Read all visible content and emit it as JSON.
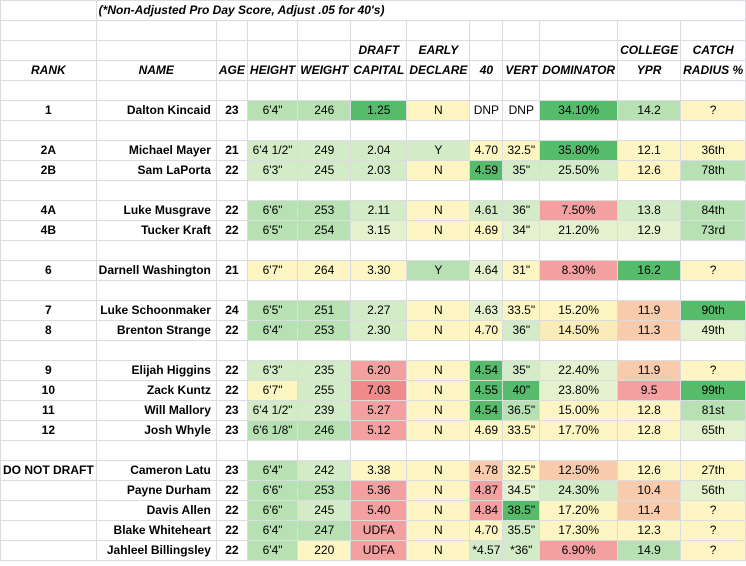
{
  "note": "(*Non-Adjusted Pro Day Score, Adjust .05 for 40's)",
  "header_top": {
    "draft": "DRAFT",
    "early": "EARLY",
    "college": "COLLEGE",
    "catch": "CATCH"
  },
  "header": {
    "rank": "RANK",
    "name": "NAME",
    "age": "AGE",
    "height": "HEIGHT",
    "weight": "WEIGHT",
    "draft": "CAPITAL",
    "early": "DECLARE",
    "forty": "40",
    "vert": "VERT",
    "dominator": "DOMINATOR",
    "college": "YPR",
    "catch": "RADIUS %"
  },
  "rows": [
    {
      "rank": "1",
      "name": "Dalton Kincaid",
      "age": "23",
      "height": "6'4\"",
      "weight": "246",
      "draft": "1.25",
      "early": "N",
      "forty": "DNP",
      "vert": "DNP",
      "dominator": "34.10%",
      "ypr": "14.2",
      "catch": "?",
      "colors": {
        "height": "#b7e1b3",
        "weight": "#b7e1b3",
        "draft": "#57bb6c",
        "early": "#fdf6c3",
        "forty": "",
        "vert": "",
        "dominator": "#57bb6c",
        "ypr": "#b7e1b3",
        "catch": "#fdf6c3"
      }
    },
    {
      "rank": "2A",
      "name": "Michael Mayer",
      "age": "21",
      "height": "6'4 1/2\"",
      "weight": "249",
      "draft": "2.04",
      "early": "Y",
      "forty": "4.70",
      "vert": "32.5\"",
      "dominator": "35.80%",
      "ypr": "12.1",
      "catch": "36th",
      "colors": {
        "height": "#d3ebc6",
        "weight": "#d3ebc6",
        "draft": "#d3ebc6",
        "early": "#d3ebc6",
        "forty": "#fdf6c3",
        "vert": "#fdf6c3",
        "dominator": "#57bb6c",
        "ypr": "#fdf6c3",
        "catch": "#fdf6c3"
      }
    },
    {
      "rank": "2B",
      "name": "Sam LaPorta",
      "age": "22",
      "height": "6'3\"",
      "weight": "245",
      "draft": "2.03",
      "early": "N",
      "forty": "4.59",
      "vert": "35\"",
      "dominator": "25.50%",
      "ypr": "12.6",
      "catch": "78th",
      "colors": {
        "height": "#d3ebc6",
        "weight": "#d3ebc6",
        "draft": "#d3ebc6",
        "early": "#fdf6c3",
        "forty": "#57bb6c",
        "vert": "#d3ebc6",
        "dominator": "#d3ebc6",
        "ypr": "#fdf6c3",
        "catch": "#b7e1b3"
      }
    },
    {
      "rank": "4A",
      "name": "Luke Musgrave",
      "age": "22",
      "height": "6'6\"",
      "weight": "253",
      "draft": "2.11",
      "early": "N",
      "forty": "4.61",
      "vert": "36\"",
      "dominator": "7.50%",
      "ypr": "13.8",
      "catch": "84th",
      "colors": {
        "height": "#b7e1b3",
        "weight": "#b7e1b3",
        "draft": "#d3ebc6",
        "early": "#fdf6c3",
        "forty": "#d3ebc6",
        "vert": "#d3ebc6",
        "dominator": "#f4a0a0",
        "ypr": "#d3ebc6",
        "catch": "#b7e1b3"
      }
    },
    {
      "rank": "4B",
      "name": "Tucker Kraft",
      "age": "22",
      "height": "6'5\"",
      "weight": "254",
      "draft": "3.15",
      "early": "N",
      "forty": "4.69",
      "vert": "34\"",
      "dominator": "21.20%",
      "ypr": "12.9",
      "catch": "73rd",
      "colors": {
        "height": "#b7e1b3",
        "weight": "#b7e1b3",
        "draft": "#e4f1cf",
        "early": "#fdf6c3",
        "forty": "#fdf6c3",
        "vert": "#e4f1cf",
        "dominator": "#e4f1cf",
        "ypr": "#e4f1cf",
        "catch": "#b7e1b3"
      }
    },
    {
      "rank": "6",
      "name": "Darnell Washington",
      "age": "21",
      "height": "6'7\"",
      "weight": "264",
      "draft": "3.30",
      "early": "Y",
      "forty": "4.64",
      "vert": "31\"",
      "dominator": "8.30%",
      "ypr": "16.2",
      "catch": "?",
      "colors": {
        "height": "#fdf6c3",
        "weight": "#fdf6c3",
        "draft": "#fdf6c3",
        "early": "#b7e1b3",
        "forty": "#e4f1cf",
        "vert": "#fdf6c3",
        "dominator": "#f4a0a0",
        "ypr": "#57bb6c",
        "catch": "#fdf6c3"
      }
    },
    {
      "rank": "7",
      "name": "Luke Schoonmaker",
      "age": "24",
      "height": "6'5\"",
      "weight": "251",
      "draft": "2.27",
      "early": "N",
      "forty": "4.63",
      "vert": "33.5\"",
      "dominator": "15.20%",
      "ypr": "11.9",
      "catch": "90th",
      "colors": {
        "height": "#b7e1b3",
        "weight": "#b7e1b3",
        "draft": "#d3ebc6",
        "early": "#fdf6c3",
        "forty": "#e4f1cf",
        "vert": "#fdf6c3",
        "dominator": "#fdf6c3",
        "ypr": "#f8cbad",
        "catch": "#57bb6c"
      }
    },
    {
      "rank": "8",
      "name": "Brenton Strange",
      "age": "22",
      "height": "6'4\"",
      "weight": "253",
      "draft": "2.30",
      "early": "N",
      "forty": "4.70",
      "vert": "36\"",
      "dominator": "14.50%",
      "ypr": "11.3",
      "catch": "49th",
      "colors": {
        "height": "#b7e1b3",
        "weight": "#b7e1b3",
        "draft": "#d3ebc6",
        "early": "#fdf6c3",
        "forty": "#fdf6c3",
        "vert": "#d3ebc6",
        "dominator": "#f9ecb9",
        "ypr": "#f8cbad",
        "catch": "#e4f1cf"
      }
    },
    {
      "rank": "9",
      "name": "Elijah Higgins",
      "age": "22",
      "height": "6'3\"",
      "weight": "235",
      "draft": "6.20",
      "early": "N",
      "forty": "4.54",
      "vert": "35\"",
      "dominator": "22.40%",
      "ypr": "11.9",
      "catch": "?",
      "colors": {
        "height": "#d3ebc6",
        "weight": "#d3ebc6",
        "draft": "#f4a0a0",
        "early": "#fdf6c3",
        "forty": "#57bb6c",
        "vert": "#d3ebc6",
        "dominator": "#e4f1cf",
        "ypr": "#f8cbad",
        "catch": "#fdf6c3"
      }
    },
    {
      "rank": "10",
      "name": "Zack Kuntz",
      "age": "22",
      "height": "6'7\"",
      "weight": "255",
      "draft": "7.03",
      "early": "N",
      "forty": "4.55",
      "vert": "40\"",
      "dominator": "23.80%",
      "ypr": "9.5",
      "catch": "99th",
      "colors": {
        "height": "#fdf6c3",
        "weight": "#d3ebc6",
        "draft": "#ef8b8b",
        "early": "#fdf6c3",
        "forty": "#57bb6c",
        "vert": "#57bb6c",
        "dominator": "#e4f1cf",
        "ypr": "#f4a0a0",
        "catch": "#57bb6c"
      }
    },
    {
      "rank": "11",
      "name": "Will Mallory",
      "age": "23",
      "height": "6'4 1/2\"",
      "weight": "239",
      "draft": "5.27",
      "early": "N",
      "forty": "4.54",
      "vert": "36.5\"",
      "dominator": "15.00%",
      "ypr": "12.8",
      "catch": "81st",
      "colors": {
        "height": "#d3ebc6",
        "weight": "#d3ebc6",
        "draft": "#f4a0a0",
        "early": "#fdf6c3",
        "forty": "#57bb6c",
        "vert": "#b7e1b3",
        "dominator": "#fdf6c3",
        "ypr": "#fdf6c3",
        "catch": "#b7e1b3"
      }
    },
    {
      "rank": "12",
      "name": "Josh Whyle",
      "age": "23",
      "height": "6'6 1/8\"",
      "weight": "246",
      "draft": "5.12",
      "early": "N",
      "forty": "4.69",
      "vert": "33.5\"",
      "dominator": "17.70%",
      "ypr": "12.8",
      "catch": "65th",
      "colors": {
        "height": "#b7e1b3",
        "weight": "#b7e1b3",
        "draft": "#f4a0a0",
        "early": "#fdf6c3",
        "forty": "#fdf6c3",
        "vert": "#fdf6c3",
        "dominator": "#fdf6c3",
        "ypr": "#fdf6c3",
        "catch": "#e4f1cf"
      }
    },
    {
      "rank": "DO NOT DRAFT",
      "name": "Cameron Latu",
      "age": "23",
      "height": "6'4\"",
      "weight": "242",
      "draft": "3.38",
      "early": "N",
      "forty": "4.78",
      "vert": "32.5\"",
      "dominator": "12.50%",
      "ypr": "12.6",
      "catch": "27th",
      "colors": {
        "height": "#b7e1b3",
        "weight": "#d3ebc6",
        "draft": "#fdf6c3",
        "early": "#fdf6c3",
        "forty": "#f8cbad",
        "vert": "#fdf6c3",
        "dominator": "#f8cbad",
        "ypr": "#fdf6c3",
        "catch": "#fdf6c3"
      }
    },
    {
      "rank": "",
      "name": "Payne Durham",
      "age": "22",
      "height": "6'6\"",
      "weight": "253",
      "draft": "5.36",
      "early": "N",
      "forty": "4.87",
      "vert": "34.5\"",
      "dominator": "24.30%",
      "ypr": "10.4",
      "catch": "56th",
      "colors": {
        "height": "#b7e1b3",
        "weight": "#b7e1b3",
        "draft": "#f4a0a0",
        "early": "#fdf6c3",
        "forty": "#f4a0a0",
        "vert": "#e4f1cf",
        "dominator": "#d3ebc6",
        "ypr": "#f8cbad",
        "catch": "#e4f1cf"
      }
    },
    {
      "rank": "",
      "name": "Davis Allen",
      "age": "22",
      "height": "6'6\"",
      "weight": "245",
      "draft": "5.40",
      "early": "N",
      "forty": "4.84",
      "vert": "38.5\"",
      "dominator": "17.20%",
      "ypr": "11.4",
      "catch": "?",
      "colors": {
        "height": "#b7e1b3",
        "weight": "#d3ebc6",
        "draft": "#f4a0a0",
        "early": "#fdf6c3",
        "forty": "#f4a0a0",
        "vert": "#57bb6c",
        "dominator": "#fdf6c3",
        "ypr": "#f8cbad",
        "catch": "#fdf6c3"
      }
    },
    {
      "rank": "",
      "name": "Blake Whiteheart",
      "age": "22",
      "height": "6'4\"",
      "weight": "247",
      "draft": "UDFA",
      "early": "N",
      "forty": "4.70",
      "vert": "35.5\"",
      "dominator": "17.30%",
      "ypr": "12.3",
      "catch": "?",
      "colors": {
        "height": "#b7e1b3",
        "weight": "#b7e1b3",
        "draft": "#f4a0a0",
        "early": "#fdf6c3",
        "forty": "#fdf6c3",
        "vert": "#d3ebc6",
        "dominator": "#fdf6c3",
        "ypr": "#fdf6c3",
        "catch": "#fdf6c3"
      }
    },
    {
      "rank": "",
      "name": "Jahleel Billingsley",
      "age": "22",
      "height": "6'4\"",
      "weight": "220",
      "draft": "UDFA",
      "early": "N",
      "forty": "*4.57",
      "vert": "*36\"",
      "dominator": "6.90%",
      "ypr": "14.9",
      "catch": "?",
      "colors": {
        "height": "#b7e1b3",
        "weight": "#fdf6c3",
        "draft": "#f4a0a0",
        "early": "#fdf6c3",
        "forty": "#d3ebc6",
        "vert": "#d3ebc6",
        "dominator": "#f4a0a0",
        "ypr": "#b7e1b3",
        "catch": "#fdf6c3"
      }
    }
  ]
}
